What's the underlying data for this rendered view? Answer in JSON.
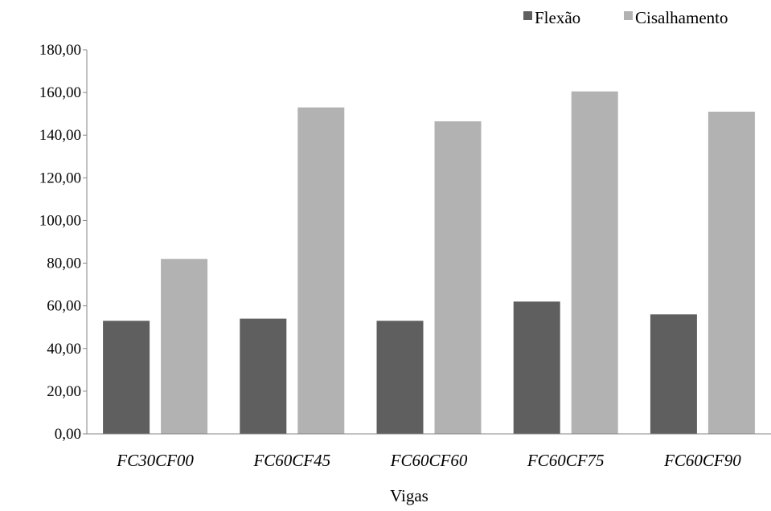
{
  "chart_data": {
    "type": "bar",
    "title": "",
    "xlabel": "Vigas",
    "ylabel": "",
    "categories": [
      "FC30CF00",
      "FC60CF45",
      "FC60CF60",
      "FC60CF75",
      "FC60CF90"
    ],
    "series": [
      {
        "name": "Flexão",
        "color": "#5f5f5f",
        "values": [
          53.0,
          54.0,
          53.0,
          62.0,
          56.0
        ]
      },
      {
        "name": "Cisalhamento",
        "color": "#b2b2b2",
        "values": [
          82.0,
          153.0,
          146.5,
          160.5,
          151.0
        ]
      }
    ],
    "ylim": [
      0,
      180
    ],
    "yticks": [
      "0,00",
      "20,00",
      "40,00",
      "60,00",
      "80,00",
      "100,00",
      "120,00",
      "140,00",
      "160,00",
      "180,00"
    ],
    "grid": false,
    "legend_position": "top-right"
  }
}
